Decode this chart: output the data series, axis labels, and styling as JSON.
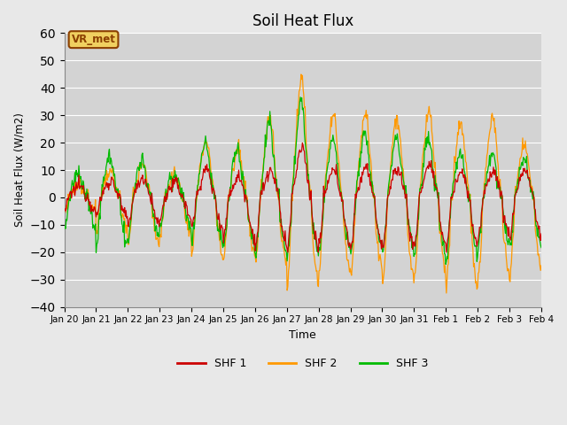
{
  "title": "Soil Heat Flux",
  "ylabel": "Soil Heat Flux (W/m2)",
  "xlabel": "Time",
  "ylim": [
    -40,
    60
  ],
  "yticks": [
    -40,
    -30,
    -20,
    -10,
    0,
    10,
    20,
    30,
    40,
    50,
    60
  ],
  "bg_color": "#d3d3d3",
  "fig_bg_color": "#e8e8e8",
  "line_colors": [
    "#cc0000",
    "#ff9900",
    "#00bb00"
  ],
  "legend_labels": [
    "SHF 1",
    "SHF 2",
    "SHF 3"
  ],
  "annotation_text": "VR_met",
  "annotation_bg": "#f0d060",
  "annotation_border": "#8b4000",
  "day_amplitudes_shf1": [
    4,
    6,
    8,
    5,
    10,
    8,
    10,
    18,
    10,
    12,
    10,
    12,
    10,
    10,
    10
  ],
  "day_amplitudes_shf2": [
    5,
    10,
    12,
    8,
    22,
    18,
    30,
    44,
    30,
    32,
    30,
    32,
    28,
    30,
    20
  ],
  "day_amplitudes_shf3": [
    8,
    15,
    14,
    8,
    20,
    18,
    28,
    35,
    22,
    24,
    22,
    22,
    18,
    16,
    14
  ],
  "night_values_shf1": [
    -5,
    -8,
    -10,
    -8,
    -12,
    -15,
    -18,
    -20,
    -18,
    -18,
    -20,
    -18,
    -18,
    -15,
    -15
  ],
  "night_values_shf2": [
    -5,
    -12,
    -18,
    -15,
    -22,
    -22,
    -25,
    -33,
    -28,
    -28,
    -32,
    -30,
    -35,
    -30,
    -28
  ],
  "night_values_shf3": [
    -12,
    -18,
    -16,
    -12,
    -18,
    -18,
    -22,
    -22,
    -20,
    -20,
    -20,
    -22,
    -22,
    -18,
    -18
  ]
}
